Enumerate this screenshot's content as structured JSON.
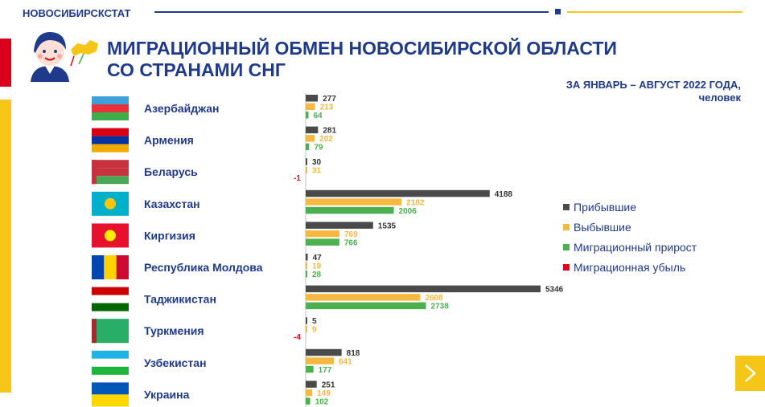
{
  "header": {
    "brand": "НОВОСИБИРСКСТАТ"
  },
  "title_line1": "МИГРАЦИОННЫЙ ОБМЕН НОВОСИБИРСКОЙ ОБЛАСТИ",
  "title_line2": "СО СТРАНАМИ СНГ",
  "subtitle_line1": "ЗА ЯНВАРЬ – АВГУСТ 2022 ГОДА,",
  "subtitle_line2": "человек",
  "colors": {
    "arrived": "#4a4a4a",
    "departed": "#f5b841",
    "growth": "#4caf50",
    "loss": "#e0001b",
    "accent": "#1f3a8a",
    "yellow": "#f5c518"
  },
  "icons": {
    "avatar": "person-avatar-icon",
    "map": "russia-map-icon",
    "next": "chevron-right-icon"
  },
  "chart_data": {
    "type": "bar",
    "orientation": "horizontal",
    "categories": [
      "Азербайджан",
      "Армения",
      "Беларусь",
      "Казахстан",
      "Киргизия",
      "Республика Молдова",
      "Таджикистан",
      "Туркмения",
      "Узбекистан",
      "Украина"
    ],
    "series": [
      {
        "name": "Прибывшие",
        "values": [
          277,
          281,
          30,
          4188,
          1535,
          47,
          5346,
          5,
          818,
          251
        ]
      },
      {
        "name": "Выбывшие",
        "values": [
          213,
          202,
          31,
          2182,
          769,
          19,
          2608,
          9,
          641,
          149
        ]
      },
      {
        "name": "Миграционный прирост",
        "values": [
          64,
          79,
          null,
          2006,
          766,
          28,
          2738,
          null,
          177,
          102
        ]
      },
      {
        "name": "Миграционная убыль",
        "values": [
          null,
          null,
          -1,
          null,
          null,
          null,
          null,
          -4,
          null,
          null
        ]
      }
    ],
    "legend": "right",
    "grid": false
  },
  "flags": [
    {
      "country": "Азербайджан",
      "stripes": [
        "#3f9fd8",
        "#e8323c",
        "#3fae4a"
      ]
    },
    {
      "country": "Армения",
      "stripes": [
        "#d90012",
        "#0033a0",
        "#f2a800"
      ]
    },
    {
      "country": "Беларусь",
      "stripes": [
        "#c8313e",
        "#c8313e",
        "#4aa657"
      ],
      "hoist": "#c8313e"
    },
    {
      "country": "Казахстан",
      "stripes": [
        "#00afca"
      ],
      "emblem": "#fec50c"
    },
    {
      "country": "Киргизия",
      "stripes": [
        "#e8112d"
      ],
      "emblem": "#ffef00"
    },
    {
      "country": "Республика Молдова",
      "vstripes": [
        "#0046ae",
        "#ffd200",
        "#cc092f"
      ]
    },
    {
      "country": "Таджикистан",
      "stripes": [
        "#cc0000",
        "#ffffff",
        "#006600"
      ]
    },
    {
      "country": "Туркмения",
      "stripes": [
        "#28ae66"
      ],
      "hoist": "#a52a2a"
    },
    {
      "country": "Узбекистан",
      "stripes": [
        "#1eb5e6",
        "#ffffff",
        "#1eb53a"
      ]
    },
    {
      "country": "Украина",
      "stripes": [
        "#0057b7",
        "#ffd700"
      ]
    }
  ]
}
